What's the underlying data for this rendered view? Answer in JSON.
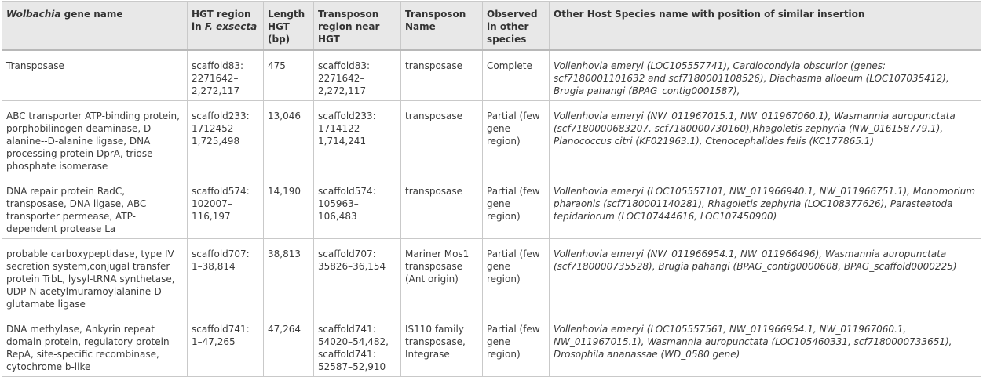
{
  "headers": {
    "gene_italic": "Wolbachia",
    "gene_rest": " gene name",
    "hgt_region_prefix": "HGT region in ",
    "hgt_region_italic": "F. exsecta",
    "length": "Length HGT (bp)",
    "transposon_region": "Transposon region near HGT",
    "transposon_name": "Transposon Name",
    "observed": "Observed in other species",
    "other_host": "Other Host Species name with position of similar insertion"
  },
  "rows": [
    {
      "gene": "Transposase",
      "hgt_region": "scaffold83: 2271642–2,272,117",
      "length": "475",
      "transposon_region": "scaffold83: 2271642–2,272,117",
      "transposon_name": "transposase",
      "observed": "Complete",
      "other_host": "Vollenhovia emeryi (LOC105557741), Cardiocondyla obscurior (genes: scf7180001101632 and scf7180001108526), Diachasma alloeum (LOC107035412), Brugia pahangi (BPAG_contig0001587),"
    },
    {
      "gene": "ABC transporter ATP-binding protein, porphobilinogen deaminase, D-alanine--D-alanine ligase, DNA processing protein DprA, triose-phosphate isomerase",
      "hgt_region": "scaffold233: 1712452–1,725,498",
      "length": "13,046",
      "transposon_region": "scaffold233: 1714122–1,714,241",
      "transposon_name": "transposase",
      "observed": "Partial (few gene region)",
      "other_host": "Vollenhovia emeryi (NW_011967015.1, NW_011967060.1), Wasmannia auropunctata (scf7180000683207, scf7180000730160),Rhagoletis zephyria (NW_016158779.1), Planococcus citri (KF021963.1), Ctenocephalides felis (KC177865.1)"
    },
    {
      "gene": "DNA repair protein RadC, transposase, DNA ligase, ABC transporter permease, ATP-dependent protease La",
      "hgt_region": "scaffold574: 102007–116,197",
      "length": "14,190",
      "transposon_region": "scaffold574: 105963–106,483",
      "transposon_name": "transposase",
      "observed": "Partial (few gene region)",
      "other_host": "Vollenhovia emeryi (LOC105557101, NW_011966940.1, NW_011966751.1), Monomorium pharaonis (scf7180001140281), Rhagoletis zephyria (LOC108377626), Parasteatoda tepidariorum (LOC107444616, LOC107450900)"
    },
    {
      "gene": "probable carboxypeptidase, type IV secretion system,conjugal transfer protein TrbL, lysyl-tRNA synthetase, UDP-N-acetylmuramoylalanine-D-glutamate ligase",
      "hgt_region": "scaffold707: 1–38,814",
      "length": "38,813",
      "transposon_region": "scaffold707: 35826–36,154",
      "transposon_name": "Mariner Mos1 transposase (Ant origin)",
      "observed": "Partial (few gene region)",
      "other_host": "Vollenhovia emeryi (NW_011966954.1, NW_011966496), Wasmannia auropunctata (scf7180000735528), Brugia pahangi (BPAG_contig0000608, BPAG_scaffold0000225)"
    },
    {
      "gene": "DNA methylase, Ankyrin repeat domain protein, regulatory protein RepA, site-specific recombinase, cytochrome b-like",
      "hgt_region": "scaffold741: 1–47,265",
      "length": "47,264",
      "transposon_region": "scaffold741: 54020–54,482, scaffold741: 52587–52,910",
      "transposon_name": "IS110 family transposase, Integrase",
      "observed": "Partial (few gene region)",
      "other_host": "Vollenhovia emeryi (LOC105557561, NW_011966954.1, NW_011967060.1, NW_011967015.1), Wasmannia auropunctata (LOC105460331, scf7180000733651), Drosophila ananassae (WD_0580 gene)"
    }
  ]
}
